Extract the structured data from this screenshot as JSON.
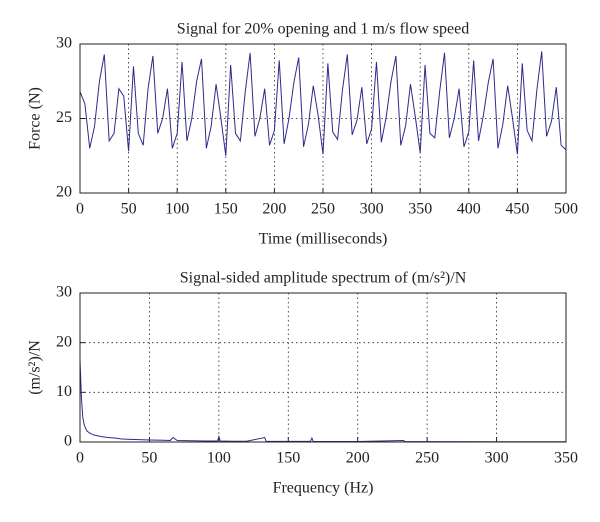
{
  "chart_data": [
    {
      "type": "line",
      "title": "Signal for 20% opening and 1 m/s flow speed",
      "xlabel": "Time (milliseconds)",
      "ylabel": "Force (N)",
      "x": [
        0,
        5,
        10,
        15,
        20,
        25,
        30,
        35,
        40,
        45,
        50,
        55,
        60,
        65,
        70,
        75,
        80,
        85,
        90,
        95,
        100,
        105,
        110,
        115,
        120,
        125,
        130,
        135,
        140,
        145,
        150,
        155,
        160,
        165,
        170,
        175,
        180,
        185,
        190,
        195,
        200,
        205,
        210,
        215,
        220,
        225,
        230,
        235,
        240,
        245,
        250,
        255,
        260,
        265,
        270,
        275,
        280,
        285,
        290,
        295,
        300,
        305,
        310,
        315,
        320,
        325,
        330,
        335,
        340,
        345,
        350,
        355,
        360,
        365,
        370,
        375,
        380,
        385,
        390,
        395,
        400,
        405,
        410,
        415,
        420,
        425,
        430,
        435,
        440,
        445,
        450,
        455,
        460,
        465,
        470,
        475,
        480,
        485,
        490,
        495,
        500
      ],
      "series": [
        {
          "name": "Force",
          "color": "#2e2a8c",
          "values": [
            26.8,
            26,
            23,
            24.5,
            27.5,
            29.3,
            23.5,
            24,
            27,
            26.5,
            22.8,
            28.5,
            24,
            23.2,
            27,
            29.2,
            24,
            25,
            27,
            23,
            24,
            28.8,
            23.5,
            25,
            27.5,
            29,
            23,
            24.5,
            27.3,
            25,
            22.5,
            28.6,
            24,
            23.5,
            26.8,
            29.4,
            23.8,
            25,
            27,
            23.2,
            24.2,
            28.9,
            23.3,
            25,
            27.4,
            29.1,
            23.1,
            24.6,
            27.2,
            25.2,
            22.6,
            28.7,
            24.1,
            23.6,
            26.9,
            29.3,
            23.9,
            24.9,
            27.1,
            23.3,
            24.3,
            28.8,
            23.4,
            25.1,
            27.5,
            29.2,
            23.2,
            24.5,
            27.3,
            25.1,
            22.7,
            28.6,
            24,
            23.7,
            26.8,
            29.4,
            23.7,
            25,
            27,
            23.1,
            24.1,
            28.9,
            23.5,
            25.2,
            27.4,
            29,
            23,
            24.6,
            27.2,
            25,
            22.6,
            28.7,
            24.2,
            23.5,
            26.9,
            29.5,
            23.8,
            24.8,
            27.1,
            23.2,
            22.9
          ]
        }
      ],
      "xlim": [
        0,
        500
      ],
      "xticks": [
        0,
        50,
        100,
        150,
        200,
        250,
        300,
        350,
        400,
        450,
        500
      ],
      "ylim": [
        20,
        30
      ],
      "yticks": [
        20,
        25,
        30
      ],
      "grid": true
    },
    {
      "type": "line",
      "title": "Signal-sided amplitude spectrum of (m/s²)/N",
      "xlabel": "Frequency (Hz)",
      "ylabel": "(m/s²)/N",
      "x": [
        0,
        1,
        2,
        3,
        4,
        5,
        7,
        10,
        15,
        20,
        25,
        30,
        40,
        50,
        60,
        65,
        67,
        70,
        80,
        90,
        99,
        100,
        101,
        110,
        120,
        133,
        134,
        140,
        150,
        166,
        167,
        168,
        180,
        200,
        233,
        234,
        250,
        300,
        350
      ],
      "series": [
        {
          "name": "Amplitude",
          "color": "#2e2a8c",
          "values": [
            16.5,
            9,
            5,
            3.5,
            2.8,
            2.2,
            1.8,
            1.4,
            1.1,
            0.9,
            0.8,
            0.6,
            0.5,
            0.4,
            0.35,
            0.3,
            0.9,
            0.3,
            0.25,
            0.2,
            0.2,
            1.1,
            0.2,
            0.15,
            0.15,
            0.9,
            0.15,
            0.12,
            0.12,
            0.12,
            0.8,
            0.1,
            0.1,
            0.1,
            0.3,
            0.1,
            0.08,
            0.06,
            0.05
          ]
        }
      ],
      "xlim": [
        0,
        350
      ],
      "xticks": [
        0,
        50,
        100,
        150,
        200,
        250,
        300,
        350
      ],
      "ylim": [
        0,
        30
      ],
      "yticks": [
        0,
        10,
        20,
        30
      ],
      "grid": true
    }
  ]
}
